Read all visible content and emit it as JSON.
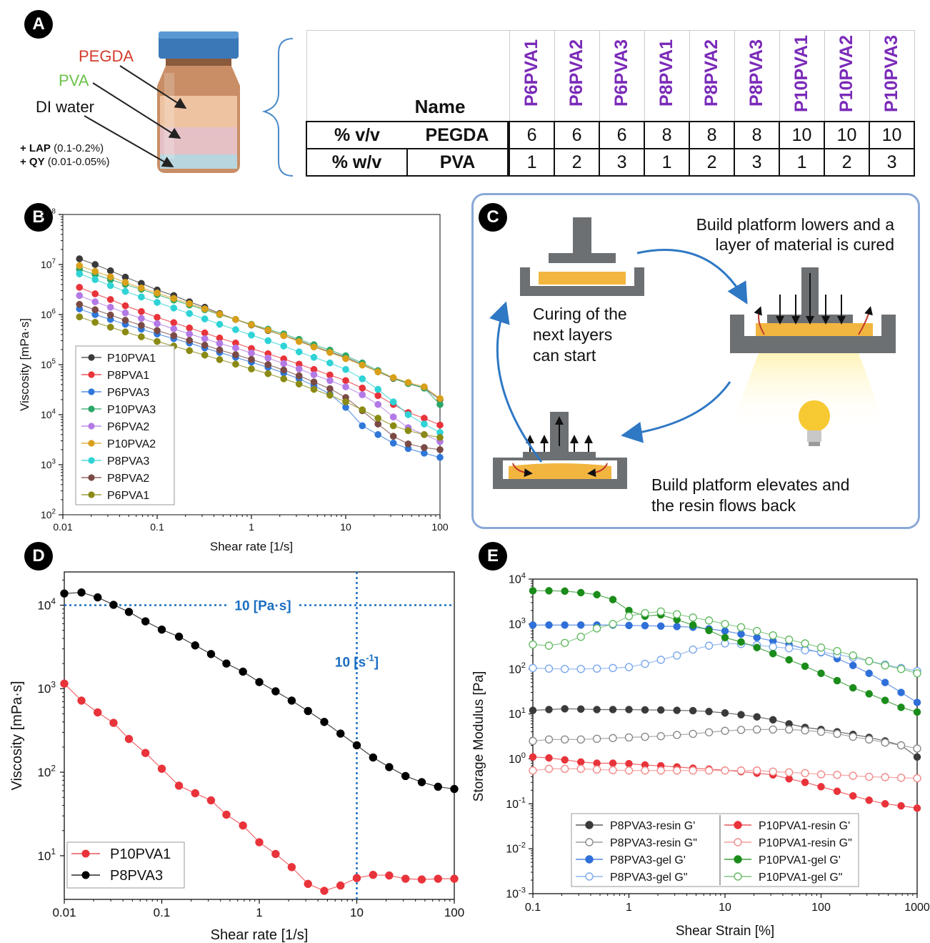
{
  "panels": {
    "a": "A",
    "b": "B",
    "c": "C",
    "d": "D",
    "e": "E"
  },
  "panel_a": {
    "labels": {
      "pegda": "PEGDA",
      "pva": "PVA",
      "water": "DI water",
      "lap_key": "+ LAP",
      "lap_val": " (0.1-0.2%)",
      "qy_key": "+ QY",
      "qy_val": " (0.01-0.05%)"
    },
    "colors": {
      "pegda": "#d43c2c",
      "pva": "#6cc24a"
    },
    "table": {
      "name_header": "Name",
      "names": [
        "P6PVA1",
        "P6PVA2",
        "P6PVA3",
        "P8PVA1",
        "P8PVA2",
        "P8PVA3",
        "P10PVA1",
        "P10PVA2",
        "P10PVA3"
      ],
      "row1": {
        "unit": "% v/v",
        "label": "PEGDA",
        "values": [
          "6",
          "6",
          "6",
          "8",
          "8",
          "8",
          "10",
          "10",
          "10"
        ]
      },
      "row2": {
        "unit": "% w/v",
        "label": "PVA",
        "values": [
          "1",
          "2",
          "3",
          "1",
          "2",
          "3",
          "1",
          "2",
          "3"
        ]
      }
    }
  },
  "panel_c": {
    "top_right": [
      "Build platform lowers and a",
      "layer of material is cured"
    ],
    "middle_left": [
      "Curing of the",
      "next layers",
      "can start"
    ],
    "bottom": [
      "Build platform elevates and",
      "the resin flows back"
    ]
  },
  "chart_data": [
    {
      "id": "B",
      "type": "scatter",
      "xlabel": "Shear rate [1/s]",
      "ylabel": "Viscosity [mPa·s]",
      "xscale": "log",
      "yscale": "log",
      "xlim": [
        0.01,
        100
      ],
      "ylim": [
        100,
        100000000
      ],
      "xticks": [
        "0.01",
        "0.1",
        "1",
        "10",
        "100"
      ],
      "legend_position": "bottom-left",
      "x": [
        0.015,
        0.022,
        0.032,
        0.046,
        0.068,
        0.1,
        0.15,
        0.22,
        0.32,
        0.46,
        0.68,
        1,
        1.5,
        2.2,
        3.2,
        4.6,
        6.8,
        10,
        15,
        22,
        32,
        46,
        68,
        100
      ],
      "series": [
        {
          "name": "P10PVA1",
          "color": "#3a3a3a",
          "values": [
            13000000,
            10000000,
            7500000,
            5600000,
            4200000,
            3100000,
            2400000,
            1800000,
            1400000,
            1050000,
            800000,
            620000,
            480000,
            380000,
            300000,
            230000,
            180000,
            140000,
            100000,
            72000,
            53000,
            42000,
            34000,
            20000
          ]
        },
        {
          "name": "P8PVA1",
          "color": "#e8333a",
          "values": [
            3500000,
            2600000,
            2000000,
            1500000,
            1150000,
            880000,
            690000,
            540000,
            430000,
            340000,
            270000,
            210000,
            165000,
            130000,
            102000,
            80000,
            62000,
            48000,
            34000,
            24000,
            16000,
            11000,
            8500,
            6200
          ]
        },
        {
          "name": "P6PVA3",
          "color": "#2f77d9",
          "values": [
            1300000,
            1000000,
            800000,
            640000,
            510000,
            410000,
            330000,
            270000,
            215000,
            175000,
            140000,
            112000,
            88000,
            68000,
            52000,
            38000,
            26000,
            14000,
            6000,
            4000,
            2700,
            2100,
            1700,
            1400
          ]
        },
        {
          "name": "P10PVA3",
          "color": "#2aa768",
          "values": [
            8000000,
            6300000,
            5000000,
            4000000,
            3200000,
            2500000,
            1950000,
            1550000,
            1250000,
            1000000,
            800000,
            640000,
            510000,
            410000,
            320000,
            250000,
            195000,
            150000,
            108000,
            76000,
            54000,
            42000,
            34000,
            16000
          ]
        },
        {
          "name": "P6PVA2",
          "color": "#b37ae6",
          "values": [
            2400000,
            1800000,
            1400000,
            1080000,
            840000,
            660000,
            520000,
            410000,
            330000,
            265000,
            215000,
            170000,
            135000,
            105000,
            82000,
            63000,
            48000,
            36000,
            25000,
            16000,
            9000,
            5500,
            4000,
            2900
          ]
        },
        {
          "name": "P10PVA2",
          "color": "#d9a01a",
          "values": [
            9500000,
            7300000,
            5700000,
            4400000,
            3400000,
            2700000,
            2100000,
            1650000,
            1300000,
            1020000,
            800000,
            630000,
            490000,
            380000,
            290000,
            225000,
            175000,
            132000,
            98000,
            72000,
            55000,
            44000,
            36000,
            21000
          ]
        },
        {
          "name": "P8PVA3",
          "color": "#2fd3d6",
          "values": [
            6500000,
            5000000,
            3800000,
            2900000,
            2250000,
            1750000,
            1350000,
            1050000,
            820000,
            640000,
            500000,
            390000,
            300000,
            235000,
            180000,
            140000,
            108000,
            80000,
            52000,
            32000,
            18000,
            10000,
            6500,
            4400
          ]
        },
        {
          "name": "P8PVA2",
          "color": "#7a4a44",
          "values": [
            1600000,
            1250000,
            980000,
            770000,
            610000,
            480000,
            380000,
            305000,
            245000,
            197000,
            158000,
            127000,
            100000,
            78000,
            60000,
            45000,
            33000,
            22000,
            12000,
            6500,
            3700,
            2600,
            2200,
            2000
          ]
        },
        {
          "name": "P6PVA1",
          "color": "#8a8a14",
          "values": [
            900000,
            700000,
            560000,
            450000,
            360000,
            290000,
            235000,
            190000,
            155000,
            126000,
            102000,
            82000,
            66000,
            52000,
            41000,
            32000,
            24500,
            18000,
            12500,
            8500,
            6000,
            4800,
            4000,
            3500
          ]
        }
      ]
    },
    {
      "id": "D",
      "type": "line",
      "xlabel": "Shear rate [1/s]",
      "ylabel": "Viscosity [mPa·s]",
      "xscale": "log",
      "yscale": "log",
      "xlim": [
        0.01,
        100
      ],
      "ylim": [
        3,
        25000
      ],
      "xticks": [
        "0.01",
        "0.1",
        "1",
        "10",
        "100"
      ],
      "legend_position": "bottom-left",
      "annotations": {
        "hline_label": "10 [Pa·s]",
        "vline_label": "10 [s",
        "vline_sup": "-1",
        "vline_close": "]",
        "hline_value": 10000,
        "vline_value": 10,
        "color": "#1b6ec2"
      },
      "series": [
        {
          "name": "P10PVA1",
          "color": "#e8333a",
          "x": [
            0.01,
            0.015,
            0.022,
            0.032,
            0.046,
            0.068,
            0.1,
            0.15,
            0.22,
            0.32,
            0.46,
            0.68,
            1,
            1.47,
            2.15,
            3.16,
            4.64,
            6.81,
            10,
            14.7,
            21.5,
            31.6,
            46.4,
            68.1,
            100
          ],
          "values": [
            1150,
            720,
            520,
            390,
            250,
            170,
            110,
            69,
            56,
            46,
            31,
            23,
            14.5,
            10.5,
            7.3,
            4.6,
            3.8,
            4.4,
            5.4,
            5.9,
            5.8,
            5.3,
            5.2,
            5.3,
            5.3
          ]
        },
        {
          "name": "P8PVA3",
          "color": "#000000",
          "x": [
            0.01,
            0.015,
            0.022,
            0.032,
            0.046,
            0.068,
            0.1,
            0.15,
            0.22,
            0.32,
            0.46,
            0.68,
            1,
            1.47,
            2.15,
            3.16,
            4.64,
            6.81,
            10,
            14.7,
            21.5,
            31.6,
            46.4,
            68.1,
            100
          ],
          "values": [
            13800,
            14200,
            12400,
            10100,
            8300,
            6400,
            5100,
            4200,
            3300,
            2600,
            2000,
            1600,
            1200,
            930,
            720,
            540,
            400,
            290,
            210,
            150,
            115,
            90,
            76,
            67,
            63
          ]
        }
      ]
    },
    {
      "id": "E",
      "type": "line",
      "xlabel": "Shear Strain [%]",
      "ylabel": "Storage Modulus [Pa]",
      "xscale": "log",
      "yscale": "log",
      "xlim": [
        0.1,
        1000
      ],
      "ylim": [
        0.001,
        10000
      ],
      "xticks": [
        "0.1",
        "1",
        "10",
        "100",
        "1000"
      ],
      "legend_position": "bottom-left",
      "x": [
        0.1,
        0.147,
        0.215,
        0.316,
        0.464,
        0.681,
        1,
        1.47,
        2.15,
        3.16,
        4.64,
        6.81,
        10,
        14.7,
        21.5,
        31.6,
        46.4,
        68.1,
        100,
        147,
        215,
        316,
        464,
        681,
        1000
      ],
      "series": [
        {
          "name": "P8PVA3-resin G'",
          "color": "#3a3a3a",
          "filled": true,
          "values": [
            12,
            12.5,
            13,
            12.8,
            12.5,
            12.5,
            12.5,
            12.3,
            12.2,
            12,
            11.8,
            11.3,
            10.5,
            9.6,
            8.6,
            7.4,
            6,
            5,
            4.5,
            4,
            3.5,
            3,
            2.5,
            2,
            1.1
          ]
        },
        {
          "name": "P8PVA3-resin G\"",
          "color": "#8a8a8a",
          "filled": false,
          "values": [
            2.5,
            2.7,
            2.7,
            2.7,
            2.8,
            2.9,
            3,
            3.1,
            3.2,
            3.4,
            3.6,
            3.9,
            4.2,
            4.4,
            4.5,
            4.5,
            4.5,
            4.3,
            4,
            3.6,
            3.1,
            2.7,
            2.3,
            2,
            1.7
          ]
        },
        {
          "name": "P8PVA3-gel G'",
          "color": "#2f6fd9",
          "filled": true,
          "values": [
            950,
            950,
            950,
            950,
            950,
            950,
            930,
            920,
            900,
            880,
            850,
            780,
            700,
            600,
            500,
            420,
            350,
            280,
            230,
            170,
            120,
            80,
            50,
            30,
            18
          ]
        },
        {
          "name": "P8PVA3-gel G\"",
          "color": "#7aa8ea",
          "filled": false,
          "values": [
            105,
            102,
            100,
            100,
            102,
            105,
            110,
            130,
            160,
            200,
            270,
            330,
            370,
            360,
            340,
            310,
            290,
            260,
            240,
            210,
            180,
            150,
            125,
            105,
            90
          ]
        },
        {
          "name": "P10PVA1-resin G'",
          "color": "#e8333a",
          "filled": true,
          "values": [
            1.1,
            1.05,
            0.95,
            0.85,
            0.8,
            0.8,
            0.78,
            0.73,
            0.7,
            0.66,
            0.62,
            0.59,
            0.56,
            0.52,
            0.48,
            0.44,
            0.36,
            0.3,
            0.24,
            0.19,
            0.15,
            0.12,
            0.1,
            0.09,
            0.08
          ]
        },
        {
          "name": "P10PVA1-resin G\"",
          "color": "#f08a8a",
          "filled": false,
          "values": [
            0.55,
            0.6,
            0.6,
            0.6,
            0.58,
            0.56,
            0.55,
            0.55,
            0.55,
            0.55,
            0.55,
            0.55,
            0.55,
            0.55,
            0.55,
            0.52,
            0.5,
            0.48,
            0.45,
            0.44,
            0.42,
            0.4,
            0.39,
            0.38,
            0.37
          ]
        },
        {
          "name": "P10PVA1-gel G'",
          "color": "#1a8c1a",
          "filled": true,
          "values": [
            5500,
            5500,
            5400,
            5000,
            4500,
            3500,
            2000,
            1500,
            1600,
            1250,
            950,
            720,
            500,
            400,
            300,
            220,
            160,
            115,
            80,
            55,
            38,
            28,
            20,
            14,
            11
          ]
        },
        {
          "name": "P10PVA1-gel G\"",
          "color": "#66bb66",
          "filled": false,
          "values": [
            350,
            330,
            380,
            520,
            800,
            1000,
            1500,
            1750,
            1900,
            1650,
            1400,
            1200,
            1000,
            850,
            700,
            560,
            450,
            370,
            300,
            250,
            200,
            150,
            120,
            100,
            80
          ]
        }
      ]
    }
  ]
}
